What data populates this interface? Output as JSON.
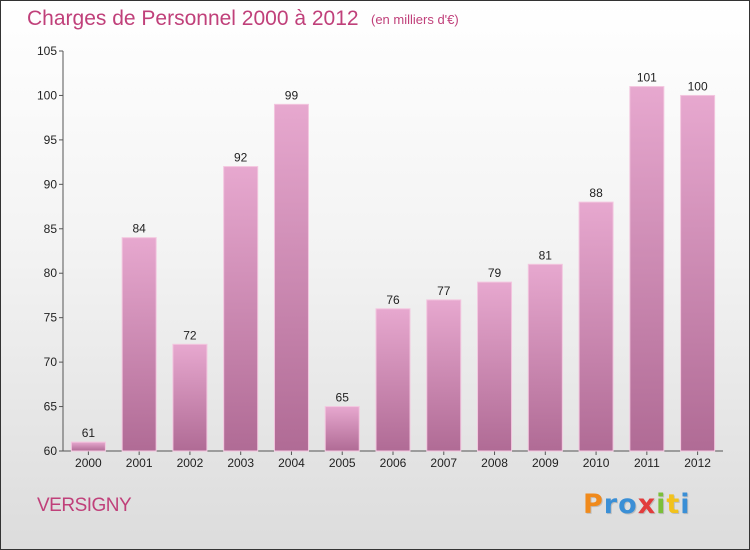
{
  "title": "Charges de Personnel 2000 à 2012",
  "subtitle": "(en milliers d'€)",
  "location": "VERSIGNY",
  "logo": {
    "text": "Proxiti",
    "letters": [
      "P",
      "r",
      "o",
      "x",
      "i",
      "t",
      "i"
    ]
  },
  "colors": {
    "title": "#c0407a",
    "bar_top": "#e7a8cf",
    "bar_bottom": "#b06b95",
    "bar_stroke": "#f3c6df"
  },
  "chart_data": {
    "type": "bar",
    "title": "Charges de Personnel 2000 à 2012",
    "subtitle": "(en milliers d'€)",
    "xlabel": "",
    "ylabel": "",
    "categories": [
      "2000",
      "2001",
      "2002",
      "2003",
      "2004",
      "2005",
      "2006",
      "2007",
      "2008",
      "2009",
      "2010",
      "2011",
      "2012"
    ],
    "values": [
      61,
      84,
      72,
      92,
      99,
      65,
      76,
      77,
      79,
      81,
      88,
      101,
      100
    ],
    "data_labels": [
      "61",
      "84",
      "72",
      "92",
      "99",
      "65",
      "76",
      "77",
      "79",
      "81",
      "88",
      "101",
      "100"
    ],
    "ylim": [
      60,
      105
    ],
    "yticks": [
      60,
      65,
      70,
      75,
      80,
      85,
      90,
      95,
      100,
      105
    ],
    "grid": false,
    "legend": "none"
  }
}
